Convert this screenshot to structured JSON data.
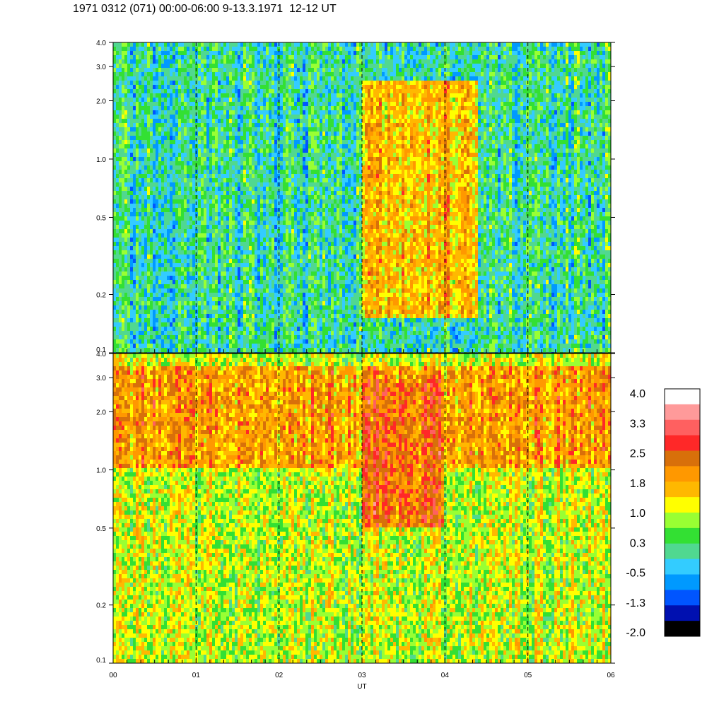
{
  "title": "1971 0312 (071) 00:00-06:00 9-13.3.1971  12-12 UT",
  "chart_data": [
    {
      "type": "heatmap",
      "panel": "upper",
      "x_ticks": [
        "00",
        "01",
        "02",
        "03",
        "04",
        "05",
        "06"
      ],
      "xlim": [
        0,
        6
      ],
      "y_scale": "log",
      "ylim": [
        0.1,
        4.0
      ],
      "y_ticks": [
        "0.1",
        "0.2",
        "0.5",
        "1.0",
        "2.0",
        "3.0",
        "4.0"
      ],
      "grid": "dashed vertical lines at each hour",
      "dominant_levels": [
        {
          "x_range": [
            0,
            3
          ],
          "y_range": [
            0.1,
            4.0
          ],
          "value": 0.0
        },
        {
          "x_range": [
            3,
            4.4
          ],
          "y_range": [
            0.15,
            2.5
          ],
          "value": 1.6
        },
        {
          "x_range": [
            4.4,
            6
          ],
          "y_range": [
            0.1,
            4.0
          ],
          "value": 0.1
        }
      ]
    },
    {
      "type": "heatmap",
      "panel": "lower",
      "x_ticks": [
        "00",
        "01",
        "02",
        "03",
        "04",
        "05",
        "06"
      ],
      "xlim": [
        0,
        6
      ],
      "y_scale": "log",
      "ylim": [
        0.1,
        4.0
      ],
      "y_ticks": [
        "0.1",
        "0.2",
        "0.5",
        "1.0",
        "2.0",
        "3.0",
        "4.0"
      ],
      "xlabel": "UT",
      "grid": "dashed vertical lines at each hour",
      "dominant_levels": [
        {
          "x_range": [
            0,
            6
          ],
          "y_range": [
            0.1,
            0.6
          ],
          "value": 1.0
        },
        {
          "x_range": [
            0,
            6
          ],
          "y_range": [
            1.0,
            3.5
          ],
          "value": 1.9
        },
        {
          "x_range": [
            3,
            4
          ],
          "y_range": [
            0.5,
            3.0
          ],
          "value": 2.3
        }
      ]
    }
  ],
  "colorbar": {
    "labels": [
      "4.0",
      "3.3",
      "2.5",
      "1.8",
      "1.0",
      "0.3",
      "-0.5",
      "-1.3",
      "-2.0"
    ],
    "colors": [
      "#ffffff",
      "#ff9a9a",
      "#ff6060",
      "#ff2828",
      "#d8700a",
      "#ff9800",
      "#ffb800",
      "#ffff00",
      "#99ff33",
      "#33e033",
      "#50d890",
      "#33ccff",
      "#0099ff",
      "#0055ff",
      "#0010b0",
      "#000000"
    ]
  }
}
